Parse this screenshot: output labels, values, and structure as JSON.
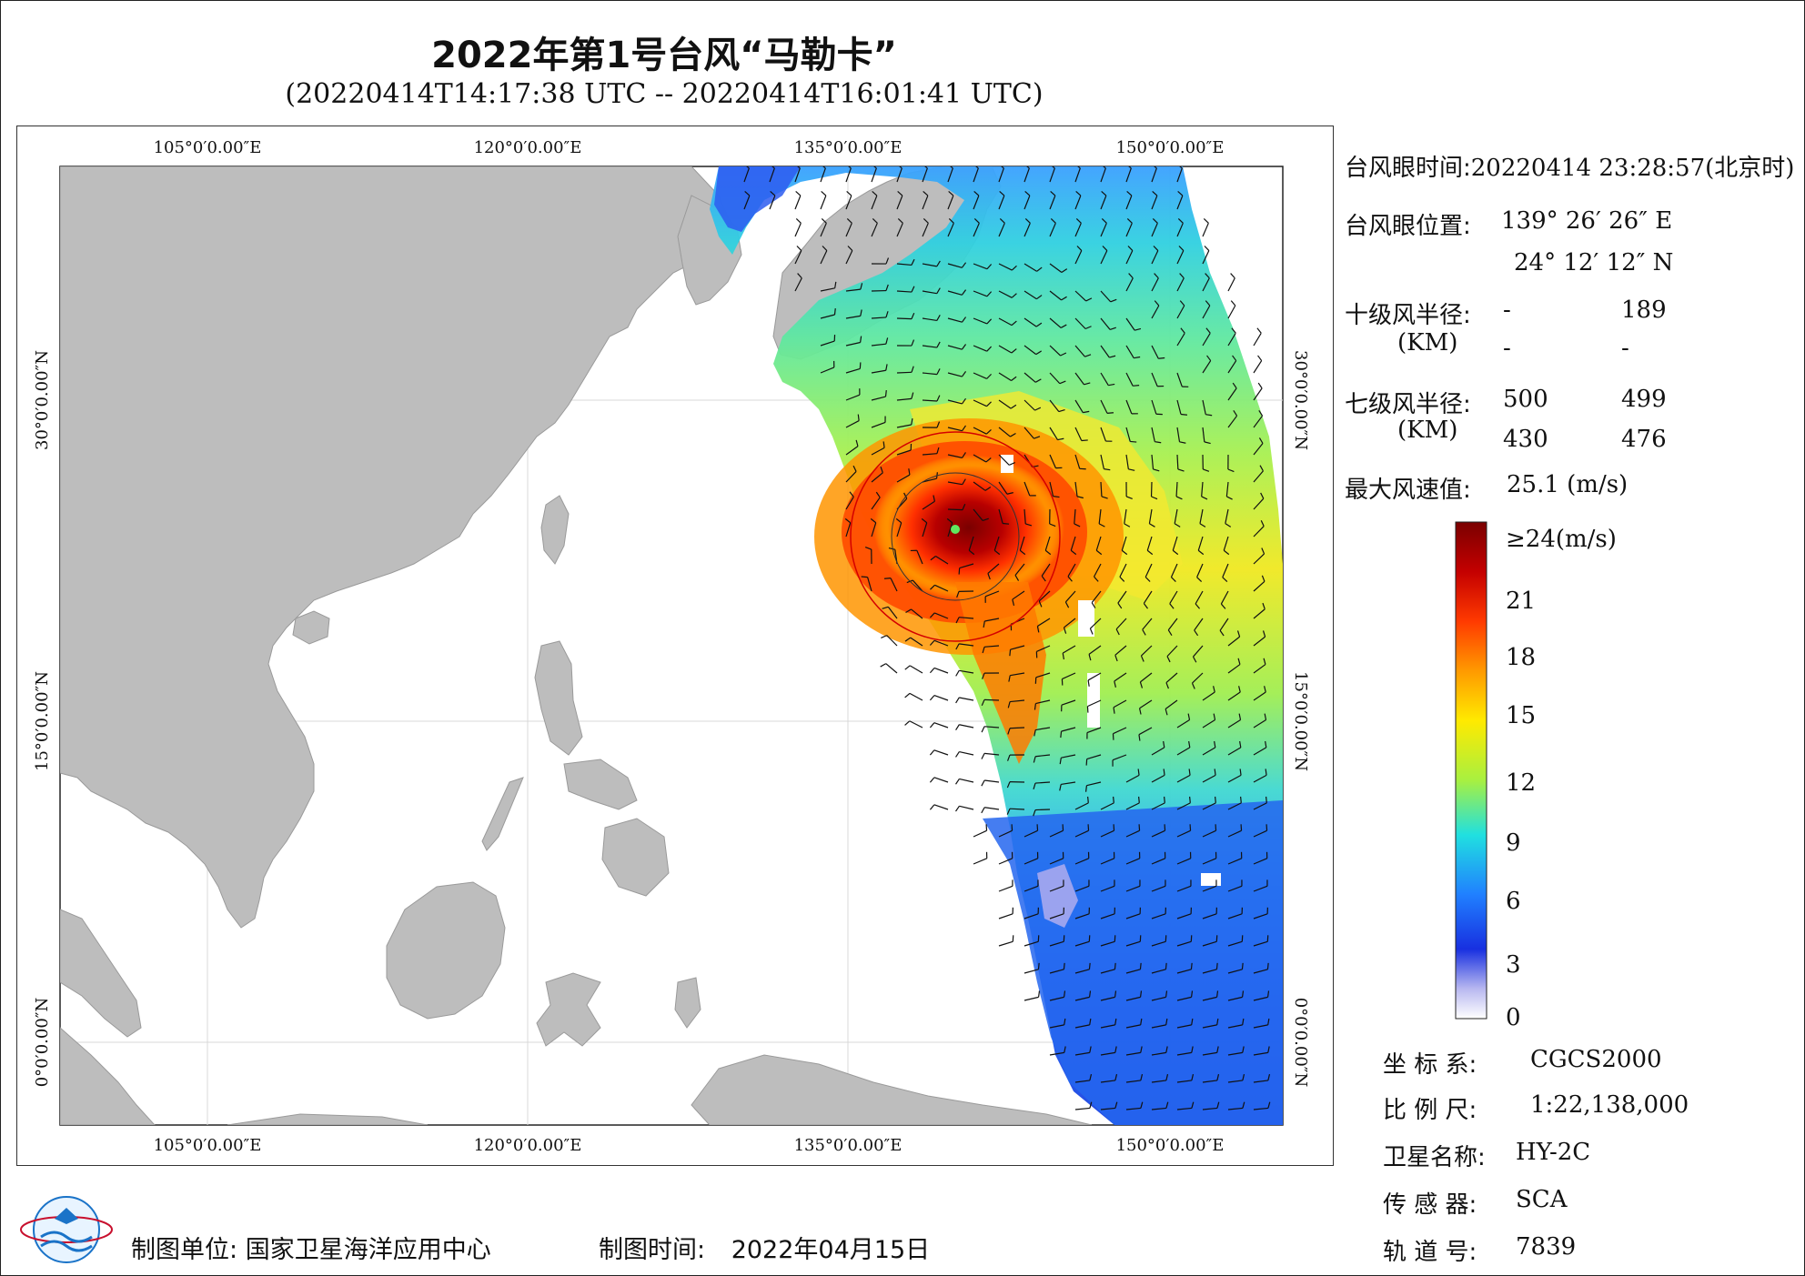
{
  "header": {
    "title": "2022年第1号台风“马勒卡”",
    "subtitle": "(20220414T14:17:38 UTC -- 20220414T16:01:41 UTC)"
  },
  "map": {
    "lon_labels": [
      "105°0′0.00″E",
      "120°0′0.00″E",
      "135°0′0.00″E",
      "150°0′0.00″E"
    ],
    "lat_labels": [
      "30°0′0.00″N",
      "15°0′0.00″N",
      "0°0′0.00″N"
    ],
    "colors": {
      "land": "#bdbdbd",
      "ocean": "#ffffff",
      "grid": "#d9d9d9",
      "eye_circle": "#d40000"
    }
  },
  "info": {
    "eye_time_label": "台风眼时间:",
    "eye_time_value": "20220414 23:28:57(北京时)",
    "eye_pos_label": "台风眼位置:",
    "eye_lon": "139° 26′ 26″ E",
    "eye_lat": "24° 12′ 12″ N",
    "r10_label": "十级风半径:",
    "r10_unit": "(KM)",
    "r10_values": [
      "-",
      "189",
      "-",
      "-"
    ],
    "r7_label": "七级风半径:",
    "r7_unit": "(KM)",
    "r7_values": [
      "500",
      "499",
      "430",
      "476"
    ],
    "max_label": "最大风速值:",
    "max_value": "25.1  (m/s)"
  },
  "colorbar": {
    "labels": [
      "≥24(m/s)",
      "21",
      "18",
      "15",
      "12",
      "9",
      "6",
      "3",
      "0"
    ],
    "colors": [
      "#7a0000",
      "#c40000",
      "#ff3a00",
      "#ff9a00",
      "#ffea00",
      "#a8f040",
      "#20e0e0",
      "#2080ff",
      "#1830e0",
      "#b8b8f0",
      "#ffffff"
    ]
  },
  "meta": {
    "crs_label": "坐 标 系:",
    "crs_value": "CGCS2000",
    "scale_label": "比 例 尺:",
    "scale_value": "1:22,138,000",
    "sat_label": "卫星名称:",
    "sat_value": "HY-2C",
    "sensor_label": "传 感 器:",
    "sensor_value": "SCA",
    "orbit_label": "轨 道 号:",
    "orbit_value": "7839"
  },
  "footer": {
    "maker_label": "制图单位:",
    "maker_value": "国家卫星海洋应用中心",
    "time_label": "制图时间:",
    "time_value": "2022年04月15日"
  }
}
